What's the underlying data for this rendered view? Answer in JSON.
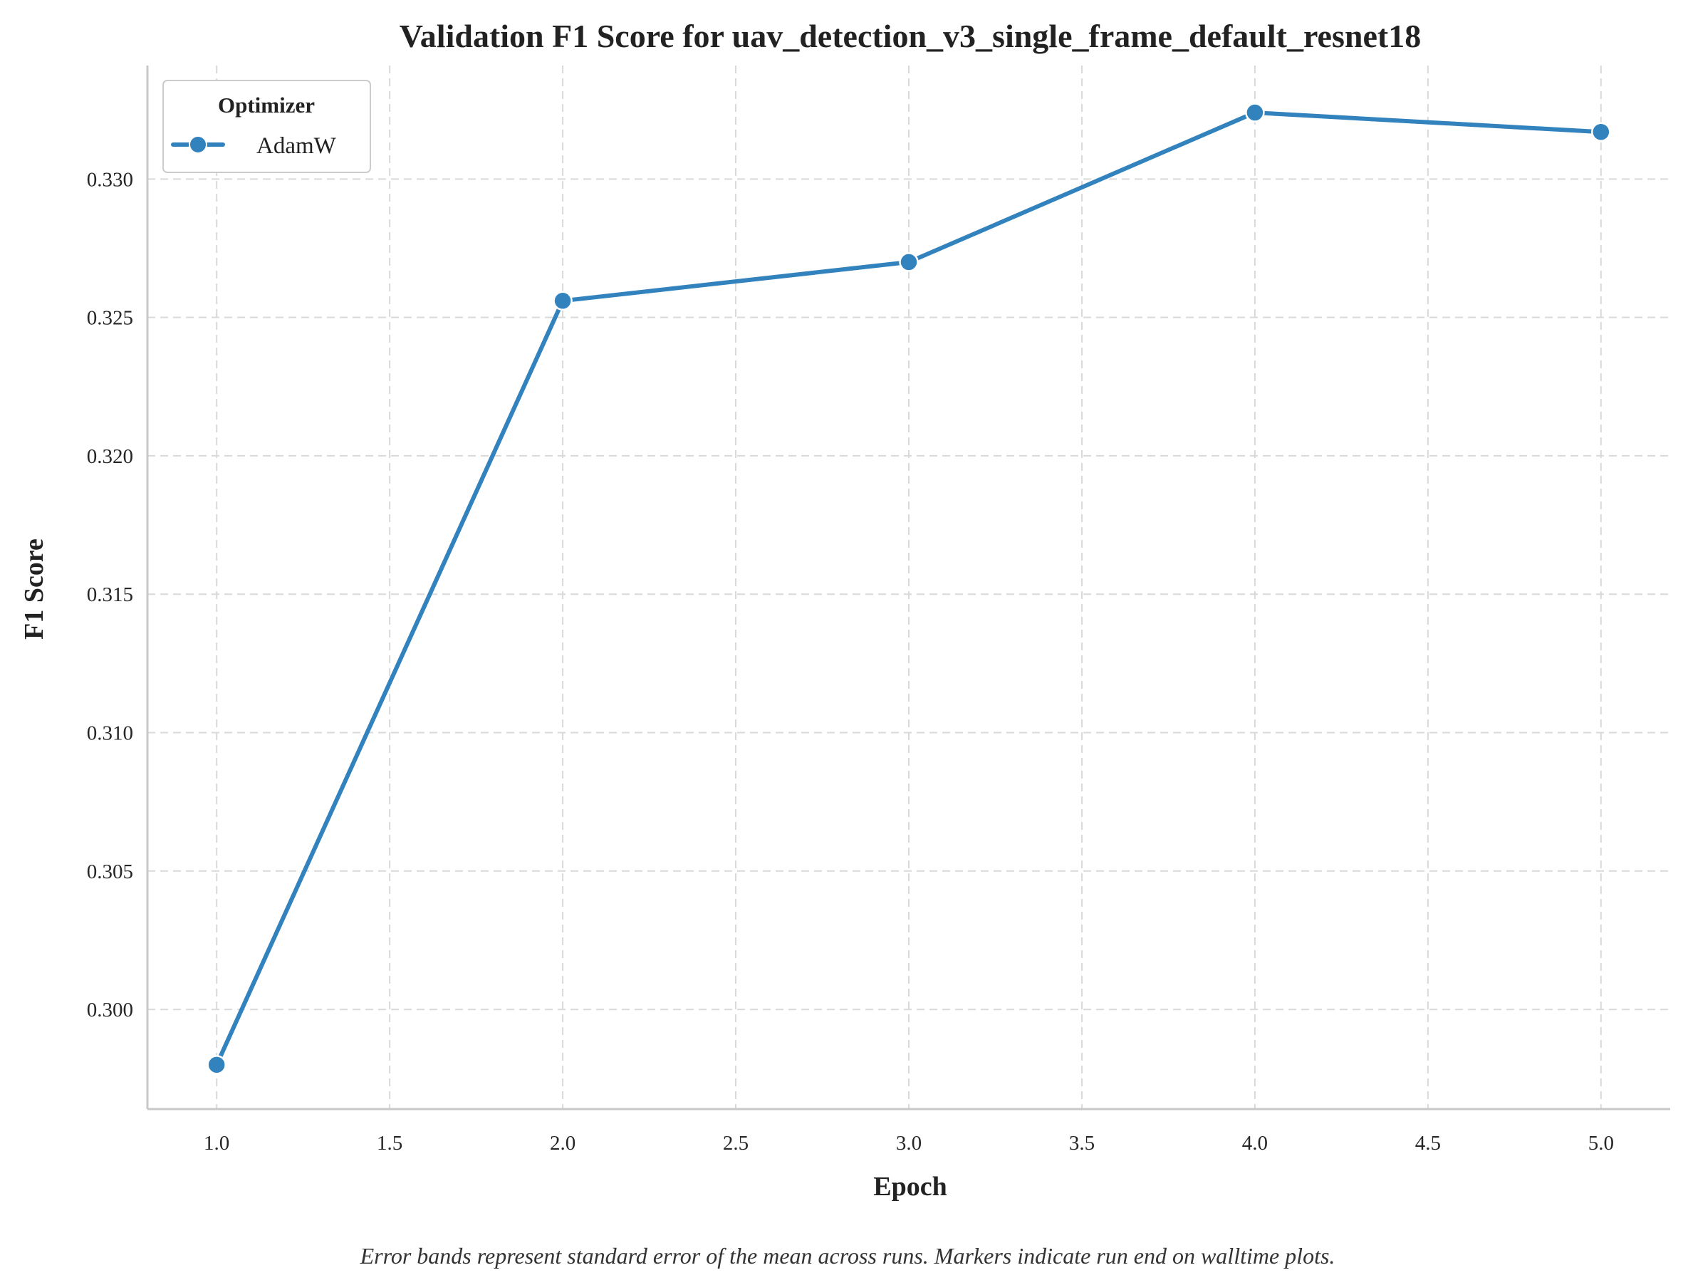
{
  "chart_data": {
    "type": "line",
    "title": "Validation F1 Score for uav_detection_v3_single_frame_default_resnet18",
    "xlabel": "Epoch",
    "ylabel": "F1 Score",
    "x": [
      1.0,
      2.0,
      3.0,
      4.0,
      5.0
    ],
    "series": [
      {
        "name": "AdamW",
        "color": "#3182bd",
        "values": [
          0.298,
          0.3256,
          0.327,
          0.3324,
          0.3317
        ]
      }
    ],
    "xlim": [
      0.8,
      5.2
    ],
    "ylim": [
      0.2964,
      0.3341
    ],
    "xticks": [
      "1.0",
      "1.5",
      "2.0",
      "2.5",
      "3.0",
      "3.5",
      "4.0",
      "4.5",
      "5.0"
    ],
    "yticks": [
      "0.300",
      "0.305",
      "0.310",
      "0.315",
      "0.320",
      "0.325",
      "0.330"
    ],
    "grid": true,
    "legend": {
      "title": "Optimizer",
      "placement": "top-left"
    },
    "caption": "Error bands represent standard error of the mean across runs. Markers indicate run end on walltime plots."
  }
}
